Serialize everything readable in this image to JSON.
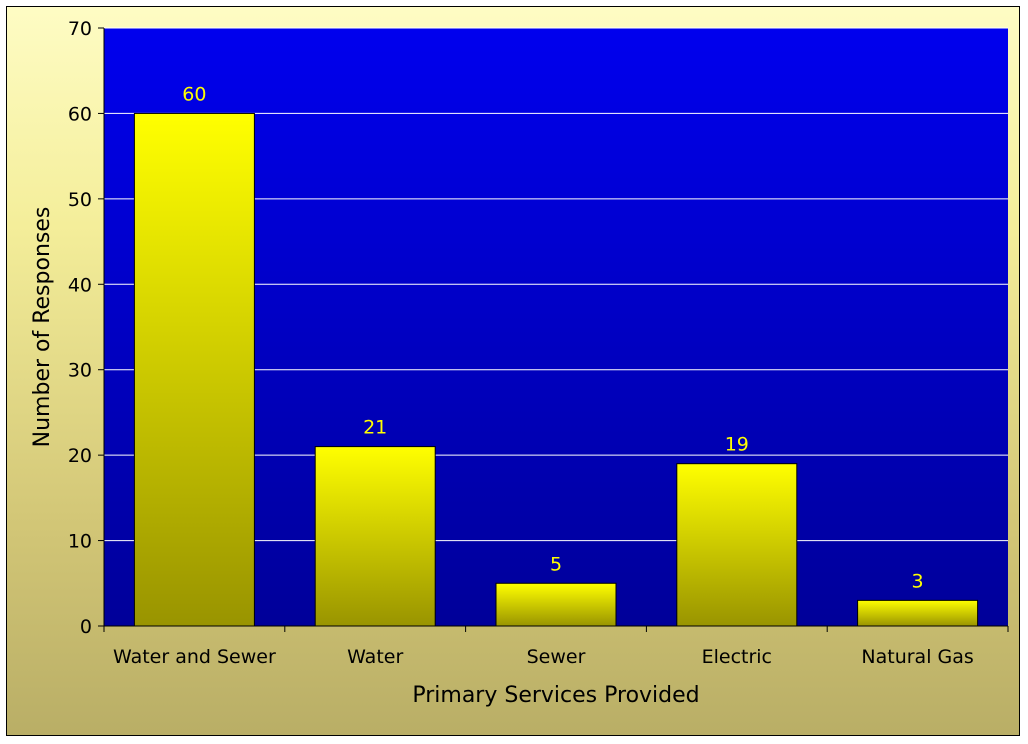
{
  "chart_data": {
    "type": "bar",
    "title": "",
    "xlabel": "Primary Services Provided",
    "ylabel": "Number of Responses",
    "categories": [
      "Water and Sewer",
      "Water",
      "Sewer",
      "Electric",
      "Natural Gas"
    ],
    "values": [
      60,
      21,
      5,
      19,
      3
    ],
    "data_labels": [
      "60",
      "21",
      "5",
      "19",
      "3"
    ],
    "ylim": [
      0,
      70
    ],
    "yticks": [
      0,
      10,
      20,
      30,
      40,
      50,
      60,
      70
    ],
    "grid": true,
    "legend": "none",
    "colors": {
      "plot_background": "#0000cc",
      "bar_top": "#ffff00",
      "bar_bottom": "#999400",
      "bar_outline": "#000000",
      "gridline": "#ffffff",
      "data_label": "#ffff00",
      "chart_background": "#f4ee9a"
    }
  }
}
